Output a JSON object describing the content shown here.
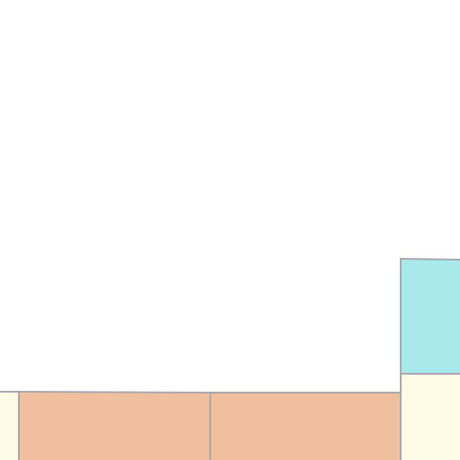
{
  "map": {
    "background_color": "#ffffff",
    "border_color": "#a8a8b0",
    "regions": [
      {
        "name": "region-cyan",
        "fill": "#a8e9ec"
      },
      {
        "name": "region-cream-right",
        "fill": "#fdfbe6"
      },
      {
        "name": "region-cream-left",
        "fill": "#fdfbe6"
      },
      {
        "name": "region-peach-left",
        "fill": "#f0c09e"
      },
      {
        "name": "region-peach-right",
        "fill": "#f0c09e"
      }
    ]
  }
}
